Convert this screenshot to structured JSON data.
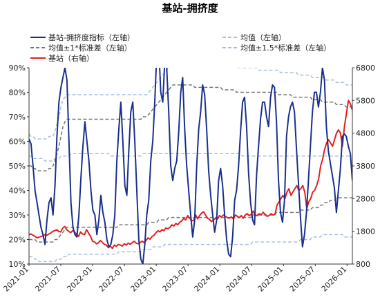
{
  "chart_data": {
    "type": "line",
    "title": "基站-拥挤度",
    "x_ticks": [
      "2021-01",
      "2021-07",
      "2022-01",
      "2022-07",
      "2023-01",
      "2023-07",
      "2024-01",
      "2024-07",
      "2025-01",
      "2025-07",
      "2026-01"
    ],
    "x_range": [
      "2021-01",
      "2026-02"
    ],
    "y_left": {
      "range": [
        10,
        90
      ],
      "ticks": [
        "10%",
        "20%",
        "30%",
        "40%",
        "50%",
        "60%",
        "70%",
        "80%",
        "90%"
      ]
    },
    "y_right": {
      "range": [
        800,
        6800
      ],
      "ticks": [
        "800",
        "1800",
        "2800",
        "3800",
        "4800",
        "5800",
        "6800"
      ]
    },
    "grid": false,
    "legend_position": "top",
    "series": [
      {
        "name": "基站-拥挤度指标（左轴）",
        "axis": "left",
        "color": "#1a2f8c",
        "style": "solid",
        "values": [
          61,
          59,
          50,
          40,
          35,
          30,
          25,
          22,
          18,
          28,
          35,
          37,
          30,
          42,
          62,
          76,
          82,
          86,
          90,
          85,
          60,
          35,
          25,
          22,
          21,
          30,
          45,
          58,
          68,
          60,
          52,
          40,
          32,
          30,
          22,
          28,
          38,
          31,
          27,
          20,
          17,
          18,
          22,
          30,
          52,
          65,
          76,
          60,
          42,
          38,
          56,
          72,
          76,
          60,
          40,
          20,
          12,
          10,
          18,
          30,
          36,
          52,
          60,
          76,
          96,
          98,
          80,
          76,
          92,
          90,
          72,
          50,
          44,
          49,
          52,
          64,
          80,
          86,
          65,
          50,
          40,
          30,
          21,
          28,
          50,
          65,
          72,
          83,
          79,
          65,
          48,
          38,
          30,
          23,
          28,
          44,
          49,
          42,
          30,
          20,
          14,
          13,
          21,
          36,
          40,
          50,
          64,
          76,
          78,
          66,
          47,
          35,
          28,
          26,
          46,
          58,
          69,
          76,
          76,
          70,
          66,
          78,
          83,
          82,
          68,
          44,
          31,
          27,
          36,
          62,
          70,
          74,
          76,
          72,
          57,
          43,
          29,
          17,
          22,
          31,
          44,
          58,
          72,
          80,
          80,
          74,
          80,
          90,
          85,
          66,
          56,
          51,
          46,
          41,
          31,
          40,
          49,
          62,
          63,
          62,
          58,
          55,
          44
        ]
      },
      {
        "name": "均值（左轴）",
        "axis": "left",
        "color": "#a9bedd",
        "style": "dash",
        "values": [
          54,
          54,
          53,
          53,
          53,
          53,
          53,
          53,
          52,
          52,
          52,
          52,
          52,
          53,
          53,
          53,
          54,
          54,
          54,
          54,
          54,
          55,
          55,
          55,
          55,
          55,
          55,
          55,
          55,
          55,
          55,
          55,
          55,
          55,
          55,
          55,
          55,
          55,
          55,
          55,
          55,
          54,
          54,
          54,
          54,
          54,
          54,
          54,
          54,
          54,
          54,
          54,
          54,
          54,
          54,
          54,
          54,
          55,
          55,
          55,
          55,
          55,
          55,
          55,
          55,
          55,
          55,
          55,
          55,
          55,
          55,
          55,
          55,
          55,
          55,
          55,
          55,
          55,
          55,
          55,
          55,
          55,
          55,
          55,
          55,
          55,
          55,
          55,
          55,
          55,
          55,
          55,
          55,
          55,
          55,
          55,
          55,
          55,
          55,
          55,
          55,
          55,
          55,
          55,
          55,
          55,
          55,
          54,
          54,
          54,
          54,
          54,
          54,
          54,
          54,
          54,
          54,
          54,
          54,
          54,
          54,
          54,
          54,
          54,
          54,
          54,
          54,
          54,
          54,
          54,
          54,
          54,
          54,
          54,
          54,
          54,
          54,
          54,
          54,
          54,
          54,
          54,
          54,
          54,
          54,
          54,
          54,
          54,
          54,
          54,
          54,
          54,
          54,
          54,
          54,
          54,
          54,
          54,
          54,
          54,
          54,
          54,
          54
        ]
      },
      {
        "name": "均值±1*标准差（左轴）",
        "axis": "left",
        "color": "#777777",
        "style": "dash",
        "values": [
          50,
          50,
          49,
          49,
          48,
          48,
          48,
          48,
          48,
          48,
          49,
          49,
          50,
          52,
          55,
          58,
          62,
          66,
          68,
          69,
          69,
          69,
          69,
          69,
          69,
          69,
          69,
          69,
          69,
          69,
          69,
          69,
          69,
          69,
          69,
          69,
          69,
          69,
          69,
          69,
          69,
          69,
          69,
          69,
          69,
          69,
          69,
          69,
          69,
          69,
          69,
          69,
          69,
          69,
          69,
          69,
          69,
          70,
          70,
          70,
          71,
          72,
          73,
          74,
          75,
          76,
          77,
          78,
          79,
          80,
          81,
          82,
          83,
          83,
          83,
          83,
          83,
          83,
          83,
          83,
          83,
          83,
          83,
          82,
          82,
          82,
          82,
          82,
          82,
          82,
          82,
          82,
          82,
          82,
          82,
          82,
          82,
          81,
          81,
          81,
          81,
          81,
          81,
          81,
          80,
          80,
          80,
          80,
          80,
          80,
          80,
          80,
          80,
          80,
          80,
          80,
          80,
          80,
          80,
          80,
          80,
          80,
          80,
          80,
          80,
          79,
          79,
          79,
          79,
          79,
          79,
          79,
          78,
          78,
          78,
          78,
          78,
          78,
          78,
          78,
          78,
          78,
          77,
          77,
          77,
          77,
          77,
          76,
          76,
          76,
          76,
          76,
          76,
          76,
          75,
          75,
          75,
          75,
          75,
          74,
          74,
          74,
          74
        ]
      },
      {
        "name": "均值±1*标准差（左轴）",
        "axis": "left",
        "color": "#777777",
        "style": "dash",
        "values": [
          20,
          20,
          20,
          20,
          19,
          19,
          19,
          19,
          19,
          19,
          19,
          19,
          19,
          20,
          20,
          21,
          22,
          23,
          24,
          25,
          25,
          25,
          25,
          25,
          25,
          25,
          25,
          25,
          25,
          25,
          25,
          25,
          25,
          25,
          25,
          25,
          25,
          25,
          25,
          25,
          25,
          25,
          25,
          25,
          25,
          26,
          26,
          26,
          26,
          26,
          26,
          26,
          26,
          26,
          26,
          26,
          26,
          26,
          26,
          26,
          27,
          27,
          27,
          27,
          27,
          28,
          28,
          28,
          28,
          28,
          29,
          29,
          29,
          29,
          29,
          29,
          29,
          29,
          29,
          29,
          29,
          29,
          29,
          29,
          29,
          29,
          29,
          29,
          29,
          29,
          29,
          29,
          29,
          29,
          29,
          29,
          29,
          29,
          29,
          29,
          29,
          29,
          29,
          29,
          29,
          29,
          29,
          29,
          29,
          29,
          29,
          29,
          30,
          30,
          30,
          30,
          30,
          30,
          30,
          30,
          30,
          30,
          30,
          30,
          31,
          31,
          31,
          31,
          31,
          31,
          31,
          31,
          31,
          31,
          31,
          31,
          32,
          32,
          32,
          32,
          32,
          32,
          33,
          33,
          33,
          33,
          34,
          34,
          35,
          35,
          35,
          36,
          36,
          36,
          37,
          37,
          37,
          37,
          37,
          37,
          37,
          37,
          37
        ]
      },
      {
        "name": "均值±1.5*标准差（左轴）",
        "axis": "left",
        "color": "#a9bedd",
        "style": "dash",
        "values": [
          63,
          62,
          62,
          61,
          61,
          61,
          61,
          61,
          61,
          61,
          62,
          62,
          62,
          64,
          67,
          70,
          74,
          77,
          78,
          79,
          79,
          79,
          79,
          79,
          79,
          79,
          79,
          79,
          79,
          79,
          79,
          79,
          79,
          79,
          79,
          79,
          79,
          79,
          79,
          79,
          79,
          79,
          79,
          79,
          79,
          79,
          79,
          79,
          79,
          79,
          79,
          79,
          79,
          79,
          79,
          79,
          79,
          79,
          79,
          79,
          80,
          81,
          82,
          83,
          84,
          85,
          86,
          87,
          88,
          89,
          90,
          91,
          92,
          92,
          92,
          92,
          92,
          92,
          92,
          92,
          92,
          92,
          91,
          91,
          91,
          91,
          91,
          91,
          91,
          91,
          91,
          91,
          91,
          91,
          91,
          91,
          91,
          91,
          91,
          91,
          91,
          91,
          91,
          91,
          91,
          90,
          90,
          90,
          90,
          90,
          90,
          90,
          90,
          90,
          90,
          89,
          89,
          89,
          89,
          89,
          89,
          89,
          89,
          89,
          89,
          89,
          88,
          88,
          88,
          88,
          88,
          88,
          88,
          88,
          88,
          87,
          87,
          87,
          87,
          87,
          87,
          87,
          86,
          86,
          86,
          86,
          86,
          86,
          86,
          85,
          85,
          85,
          85,
          85,
          84,
          84,
          84,
          84,
          84,
          83,
          83,
          83,
          83
        ]
      },
      {
        "name": "均值±1.5*标准差（左轴）",
        "axis": "left",
        "color": "#a9bedd",
        "style": "dash",
        "values": [
          13,
          13,
          13,
          12,
          12,
          11,
          11,
          11,
          11,
          11,
          11,
          11,
          11,
          11,
          12,
          12,
          12,
          13,
          13,
          13,
          14,
          14,
          14,
          14,
          14,
          14,
          14,
          14,
          14,
          14,
          14,
          14,
          14,
          14,
          14,
          14,
          14,
          14,
          14,
          14,
          14,
          14,
          14,
          14,
          14,
          15,
          15,
          15,
          15,
          15,
          15,
          15,
          15,
          15,
          15,
          15,
          15,
          16,
          16,
          16,
          16,
          16,
          17,
          17,
          17,
          17,
          17,
          17,
          18,
          18,
          18,
          18,
          18,
          18,
          18,
          18,
          18,
          18,
          18,
          18,
          18,
          18,
          18,
          18,
          18,
          18,
          18,
          18,
          18,
          18,
          18,
          18,
          18,
          18,
          18,
          18,
          18,
          18,
          18,
          18,
          18,
          18,
          18,
          18,
          18,
          18,
          18,
          18,
          18,
          18,
          18,
          18,
          19,
          19,
          19,
          19,
          19,
          19,
          19,
          19,
          19,
          19,
          19,
          19,
          19,
          19,
          19,
          19,
          19,
          19,
          19,
          19,
          19,
          19,
          19,
          19,
          20,
          20,
          20,
          20,
          20,
          20,
          21,
          21,
          21,
          21,
          21,
          22,
          22,
          22,
          22,
          22,
          22,
          22,
          22,
          22,
          22,
          22,
          21,
          21,
          21,
          21,
          21
        ]
      },
      {
        "name": "基站（右轴）",
        "axis": "right",
        "color": "#e02020",
        "style": "solid",
        "values": [
          1700,
          1720,
          1680,
          1650,
          1600,
          1620,
          1640,
          1660,
          1700,
          1680,
          1720,
          1750,
          1800,
          1820,
          1850,
          1800,
          1780,
          1900,
          1950,
          1850,
          1800,
          1760,
          1820,
          1780,
          1700,
          1650,
          1780,
          1720,
          1700,
          1850,
          1750,
          1650,
          1500,
          1480,
          1420,
          1450,
          1520,
          1460,
          1400,
          1380,
          1300,
          1350,
          1280,
          1380,
          1340,
          1400,
          1380,
          1350,
          1420,
          1380,
          1440,
          1400,
          1450,
          1500,
          1440,
          1420,
          1460,
          1500,
          1460,
          1520,
          1600,
          1560,
          1640,
          1680,
          1760,
          1820,
          1780,
          1850,
          1820,
          1900,
          1880,
          1920,
          2000,
          1960,
          2040,
          2000,
          2080,
          2120,
          2200,
          2150,
          2280,
          2200,
          2120,
          2140,
          2300,
          2180,
          2280,
          2360,
          2400,
          2300,
          2200,
          2160,
          2100,
          2150,
          2200,
          2180,
          2280,
          2240,
          2300,
          2260,
          2220,
          2200,
          2240,
          2180,
          2300,
          2260,
          2220,
          2280,
          2200,
          2300,
          2340,
          2280,
          2320,
          2420,
          2300,
          2280,
          2340,
          2300,
          2380,
          2320,
          2260,
          2280,
          2340,
          2300,
          2320,
          2600,
          2700,
          2800,
          2900,
          2800,
          3000,
          3100,
          2900,
          3000,
          3100,
          3200,
          3050,
          3100,
          3200,
          3000,
          2500,
          2700,
          2800,
          3000,
          3050,
          3200,
          3400,
          3800,
          4000,
          4300,
          4500,
          4600,
          4500,
          4400,
          4600,
          4800,
          4900,
          4800,
          4400,
          5000,
          5400,
          5800,
          5700,
          5500
        ]
      }
    ]
  }
}
